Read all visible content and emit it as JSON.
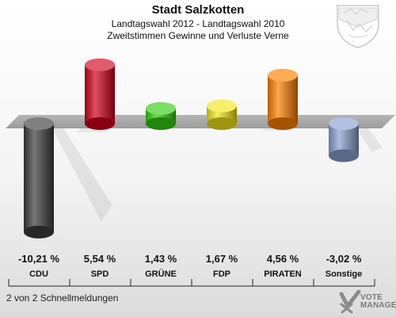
{
  "header": {
    "title": "Stadt Salzkotten",
    "subtitle": "Landtagswahl 2012 - Landtagswahl 2010",
    "subtitle2": "Zweitstimmen Gewinne und Verluste Verne"
  },
  "footer": {
    "text": "2 von 2 Schnellmeldungen"
  },
  "brand": {
    "line1": "VOTE",
    "line2": "MANAGER"
  },
  "chart_data": {
    "type": "bar",
    "title": "Stadt Salzkotten",
    "subtitle": "Landtagswahl 2012 - Landtagswahl 2010 Zweitstimmen Gewinne und Verluste Verne",
    "unit": "%",
    "categories": [
      "CDU",
      "SPD",
      "GRÜNE",
      "FDP",
      "PIRATEN",
      "Sonstige"
    ],
    "values": [
      -10.21,
      5.54,
      1.43,
      1.67,
      4.56,
      -3.02
    ],
    "value_labels": [
      "-10,21 %",
      "5,54 %",
      "1,43 %",
      "1,67 %",
      "4,56 %",
      "-3,02 %"
    ],
    "colors": [
      "#3c3c3c",
      "#d0021b",
      "#33cc11",
      "#f3e61a",
      "#ff7f00",
      "#8a9fd0"
    ],
    "grid": false,
    "legend": "none"
  }
}
